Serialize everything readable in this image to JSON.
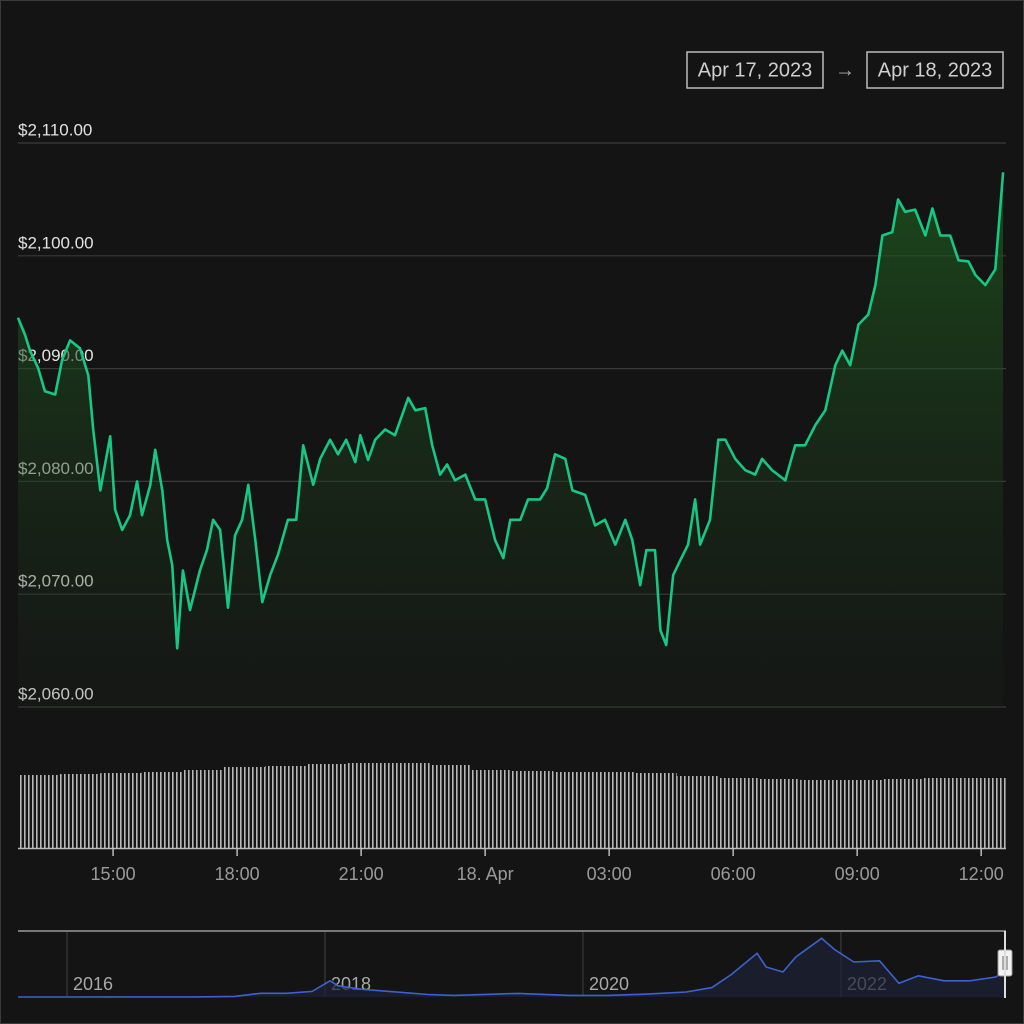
{
  "range_selector": {
    "from": "Apr 17, 2023",
    "separator": "→",
    "to": "Apr 18, 2023"
  },
  "chart_data": [
    {
      "type": "line",
      "x": [
        12.7,
        12.87,
        12.99,
        13.19,
        13.35,
        13.6,
        13.77,
        13.96,
        14.2,
        14.4,
        14.52,
        14.69,
        14.93,
        15.05,
        15.22,
        15.41,
        15.58,
        15.7,
        15.9,
        16.02,
        16.19,
        16.31,
        16.43,
        16.55,
        16.69,
        16.86,
        17.1,
        17.27,
        17.42,
        17.59,
        17.78,
        17.95,
        18.12,
        18.27,
        18.44,
        18.61,
        18.8,
        18.99,
        19.23,
        19.43,
        19.6,
        19.84,
        20.01,
        20.25,
        20.44,
        20.64,
        20.86,
        20.98,
        21.17,
        21.34,
        21.58,
        21.82,
        22.14,
        22.31,
        22.55,
        22.72,
        22.91,
        23.08,
        23.27,
        23.52,
        23.76,
        24.0,
        24.24,
        24.44,
        24.61,
        24.85,
        25.04,
        25.33,
        25.5,
        25.69,
        25.94,
        26.11,
        26.42,
        26.66,
        26.9,
        27.15,
        27.39,
        27.56,
        27.75,
        27.9,
        28.11,
        28.24,
        28.38,
        28.55,
        28.72,
        28.91,
        29.08,
        29.2,
        29.44,
        29.64,
        29.81,
        30.05,
        30.29,
        30.53,
        30.7,
        30.94,
        31.26,
        31.5,
        31.74,
        31.99,
        32.23,
        32.47,
        32.64,
        32.83,
        33.03,
        33.27,
        33.44,
        33.61,
        33.85,
        33.99,
        34.16,
        34.4,
        34.65,
        34.82,
        35.01,
        35.25,
        35.45,
        35.69,
        35.86,
        36.1,
        36.34,
        36.53
      ],
      "values": [
        2094.5,
        2093,
        2091.6,
        2090,
        2088,
        2087.7,
        2090.8,
        2092.5,
        2091.8,
        2089.4,
        2084.6,
        2079.2,
        2084,
        2077.5,
        2075.7,
        2077,
        2080,
        2077,
        2079.7,
        2082.8,
        2079.2,
        2074.8,
        2072.6,
        2065.2,
        2072.1,
        2068.6,
        2072.1,
        2073.9,
        2076.6,
        2075.7,
        2068.8,
        2075.2,
        2076.6,
        2079.7,
        2074.8,
        2069.3,
        2071.7,
        2073.5,
        2076.6,
        2076.6,
        2083.2,
        2079.7,
        2082,
        2083.7,
        2082.4,
        2083.7,
        2081.7,
        2084.1,
        2081.9,
        2083.7,
        2084.6,
        2084.1,
        2087.4,
        2086.3,
        2086.5,
        2083.2,
        2080.6,
        2081.5,
        2080.1,
        2080.6,
        2078.4,
        2078.4,
        2074.8,
        2073.2,
        2076.6,
        2076.6,
        2078.4,
        2078.4,
        2079.4,
        2082.4,
        2082,
        2079.2,
        2078.8,
        2076.1,
        2076.6,
        2074.4,
        2076.6,
        2074.8,
        2070.8,
        2073.9,
        2073.9,
        2066.8,
        2065.5,
        2071.7,
        2073,
        2074.4,
        2078.4,
        2074.4,
        2076.6,
        2083.7,
        2083.7,
        2082,
        2081,
        2080.6,
        2082,
        2081,
        2080.1,
        2083.2,
        2083.2,
        2085,
        2086.3,
        2090.3,
        2091.6,
        2090.3,
        2093.9,
        2094.8,
        2097.4,
        2101.8,
        2102.1,
        2105,
        2103.9,
        2104.1,
        2101.8,
        2104.2,
        2101.8,
        2101.8,
        2099.6,
        2099.5,
        2098.3,
        2097.4,
        2098.8,
        2107.4
      ],
      "color": "#17c784",
      "xlim": [
        12.7,
        36.6
      ],
      "xticks": [
        {
          "value": 15,
          "label": "15:00"
        },
        {
          "value": 18,
          "label": "18:00"
        },
        {
          "value": 21,
          "label": "21:00"
        },
        {
          "value": 24,
          "label": "18. Apr"
        },
        {
          "value": 27,
          "label": "03:00"
        },
        {
          "value": 30,
          "label": "06:00"
        },
        {
          "value": 33,
          "label": "09:00"
        },
        {
          "value": 36,
          "label": "12:00"
        }
      ],
      "ylim": [
        2060,
        2110
      ],
      "yticks": [
        {
          "value": 2060,
          "label": "$2,060.00"
        },
        {
          "value": 2070,
          "label": "$2,070.00"
        },
        {
          "value": 2080,
          "label": "$2,080.00"
        },
        {
          "value": 2090,
          "label": "$2,090.00"
        },
        {
          "value": 2100,
          "label": "$2,100.00"
        },
        {
          "value": 2110,
          "label": "$2,110.00"
        }
      ],
      "grid": true
    },
    {
      "type": "bar",
      "values": [
        73,
        74,
        75,
        76,
        78,
        81,
        82,
        84,
        85,
        85,
        83,
        78,
        77,
        76,
        76,
        75,
        72,
        70,
        69,
        68,
        68,
        69,
        70,
        70
      ],
      "color": "#b8b8b8",
      "ylim": [
        0,
        90
      ]
    },
    {
      "type": "area",
      "x": [
        2015.62,
        2016.0,
        2016.5,
        2017.0,
        2017.3,
        2017.5,
        2017.7,
        2017.9,
        2018.04,
        2018.1,
        2018.3,
        2018.5,
        2018.8,
        2019.0,
        2019.5,
        2019.9,
        2020.2,
        2020.5,
        2020.8,
        2021.0,
        2021.15,
        2021.35,
        2021.42,
        2021.55,
        2021.65,
        2021.85,
        2021.95,
        2022.1,
        2022.3,
        2022.45,
        2022.6,
        2022.8,
        2023.0,
        2023.2,
        2023.28
      ],
      "values": [
        1,
        1,
        12,
        8,
        50,
        300,
        300,
        450,
        1300,
        900,
        600,
        450,
        200,
        130,
        290,
        130,
        130,
        230,
        400,
        750,
        1800,
        3500,
        2400,
        2000,
        3200,
        4700,
        3800,
        2800,
        2900,
        1100,
        1700,
        1300,
        1300,
        1600,
        2100
      ],
      "color": "#3d62d0",
      "xlim": [
        2015.62,
        2023.28
      ],
      "xticks": [
        2016,
        2018,
        2020,
        2022
      ],
      "ylim": [
        0,
        5200
      ],
      "grid": true
    }
  ]
}
